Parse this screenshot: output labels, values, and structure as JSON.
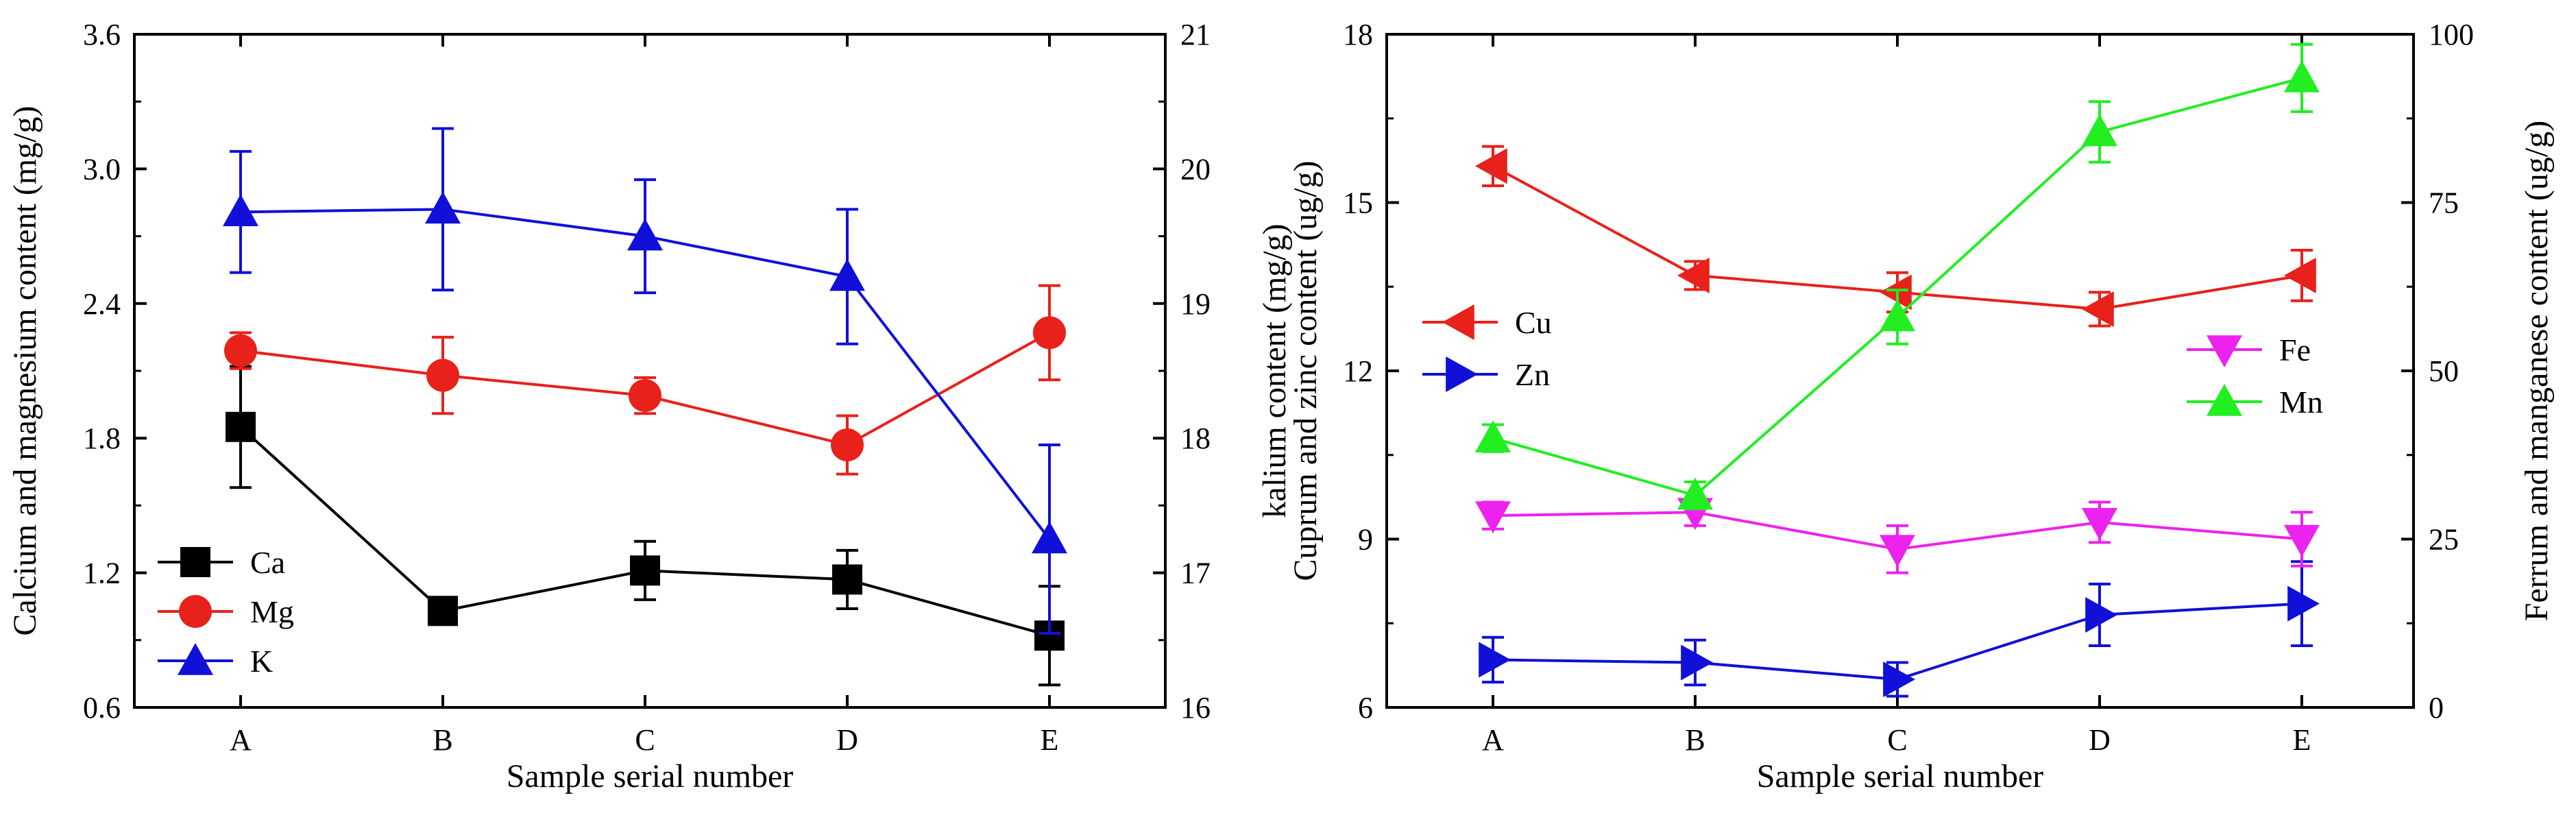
{
  "chart_data": [
    {
      "type": "line",
      "xlabel": "Sample serial number",
      "categories": [
        "A",
        "B",
        "C",
        "D",
        "E"
      ],
      "y_left": {
        "label": "Calcium and magnesium content (mg/g)",
        "range": [
          0.6,
          3.6
        ],
        "ticks": [
          0.6,
          1.2,
          1.8,
          2.4,
          3.0,
          3.6
        ],
        "tick_labels": [
          "0.6",
          "1.2",
          "1.8",
          "2.4",
          "3.0",
          "3.6"
        ]
      },
      "y_right": {
        "label": "kalium content (mg/g)",
        "range": [
          16,
          21
        ],
        "ticks": [
          16,
          17,
          18,
          19,
          20,
          21
        ],
        "tick_labels": [
          "16",
          "17",
          "18",
          "19",
          "20",
          "21"
        ]
      },
      "legend_position": "bottom-left",
      "series": [
        {
          "name": "Ca",
          "axis": "left",
          "color": "#000000",
          "marker": "square",
          "values": [
            1.85,
            1.03,
            1.21,
            1.17,
            0.92
          ],
          "errors": [
            0.27,
            0.03,
            0.13,
            0.13,
            0.22
          ]
        },
        {
          "name": "Mg",
          "axis": "left",
          "color": "#e8211a",
          "marker": "circle",
          "values": [
            2.19,
            2.08,
            1.99,
            1.77,
            2.27
          ],
          "errors": [
            0.08,
            0.17,
            0.08,
            0.13,
            0.21
          ]
        },
        {
          "name": "K",
          "axis": "right",
          "color": "#1010d8",
          "marker": "triangle-up",
          "values": [
            19.68,
            19.7,
            19.5,
            19.2,
            17.25
          ],
          "errors": [
            0.45,
            0.6,
            0.42,
            0.5,
            0.7
          ]
        }
      ]
    },
    {
      "type": "line",
      "xlabel": "Sample serial number",
      "categories": [
        "A",
        "B",
        "C",
        "D",
        "E"
      ],
      "y_left": {
        "label": "Cuprum and zinc content (ug/g)",
        "range": [
          6,
          18
        ],
        "ticks": [
          6,
          9,
          12,
          15,
          18
        ],
        "tick_labels": [
          "6",
          "9",
          "12",
          "15",
          "18"
        ]
      },
      "y_right": {
        "label": "Ferrum and manganese content (ug/g)",
        "range": [
          0,
          100
        ],
        "ticks": [
          0,
          25,
          50,
          75,
          100
        ],
        "tick_labels": [
          "0",
          "25",
          "50",
          "75",
          "100"
        ]
      },
      "legend_position": "middle",
      "series": [
        {
          "name": "Cu",
          "axis": "left",
          "color": "#e8211a",
          "marker": "triangle-left",
          "values": [
            15.65,
            13.7,
            13.4,
            13.1,
            13.7
          ],
          "errors": [
            0.35,
            0.25,
            0.35,
            0.3,
            0.45
          ]
        },
        {
          "name": "Zn",
          "axis": "left",
          "color": "#1010d8",
          "marker": "triangle-right",
          "values": [
            6.85,
            6.8,
            6.5,
            7.65,
            7.85
          ],
          "errors": [
            0.4,
            0.4,
            0.3,
            0.55,
            0.75
          ]
        },
        {
          "name": "Fe",
          "axis": "right",
          "color": "#ee22ee",
          "marker": "triangle-down",
          "values": [
            28.5,
            29.0,
            23.5,
            27.5,
            25.0
          ],
          "errors": [
            2.0,
            2.0,
            3.5,
            3.0,
            4.0
          ]
        },
        {
          "name": "Mn",
          "axis": "right",
          "color": "#22ee22",
          "marker": "triangle-up",
          "values": [
            40.0,
            31.5,
            58.0,
            85.5,
            93.5
          ],
          "errors": [
            2.0,
            2.0,
            4.0,
            4.5,
            5.0
          ]
        }
      ]
    }
  ]
}
